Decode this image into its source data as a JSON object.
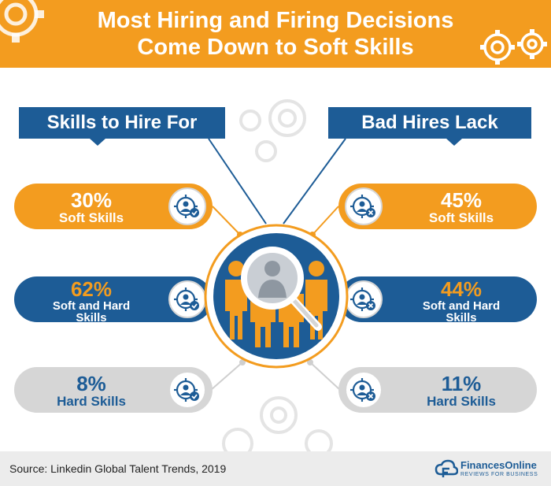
{
  "header": {
    "title_line1": "Most Hiring and Firing Decisions",
    "title_line2": "Come Down to Soft Skills"
  },
  "left_section": {
    "label": "Skills to Hire For",
    "items": [
      {
        "percent": "30%",
        "label": "Soft Skills",
        "style": "orange",
        "badge": "check"
      },
      {
        "percent": "62%",
        "label": "Soft and Hard Skills",
        "label_line1": "Soft and Hard",
        "label_line2": "Skills",
        "style": "blue",
        "badge": "check"
      },
      {
        "percent": "8%",
        "label": "Hard Skills",
        "style": "gray",
        "badge": "check"
      }
    ]
  },
  "right_section": {
    "label": "Bad Hires Lack",
    "items": [
      {
        "percent": "45%",
        "label": "Soft Skills",
        "style": "orange",
        "badge": "x"
      },
      {
        "percent": "44%",
        "label": "Soft and Hard Skills",
        "label_line1": "Soft and Hard",
        "label_line2": "Skills",
        "style": "blue",
        "badge": "x"
      },
      {
        "percent": "11%",
        "label": "Hard Skills",
        "style": "gray",
        "badge": "x"
      }
    ]
  },
  "center_illustration": {
    "icon": "magnifier-over-people-icon"
  },
  "icons": {
    "item_icon": "gear-person-icon",
    "check_badge": "check-badge-icon",
    "x_badge": "x-badge-icon"
  },
  "footer": {
    "source": "Source: Linkedin Global Talent Trends, 2019",
    "brand_name": "FinancesOnline",
    "brand_tagline": "REVIEWS FOR BUSINESS"
  },
  "colors": {
    "orange": "#f39c1f",
    "blue": "#1d5c96",
    "gray": "#d6d6d6",
    "footer_bg": "#ececec"
  }
}
